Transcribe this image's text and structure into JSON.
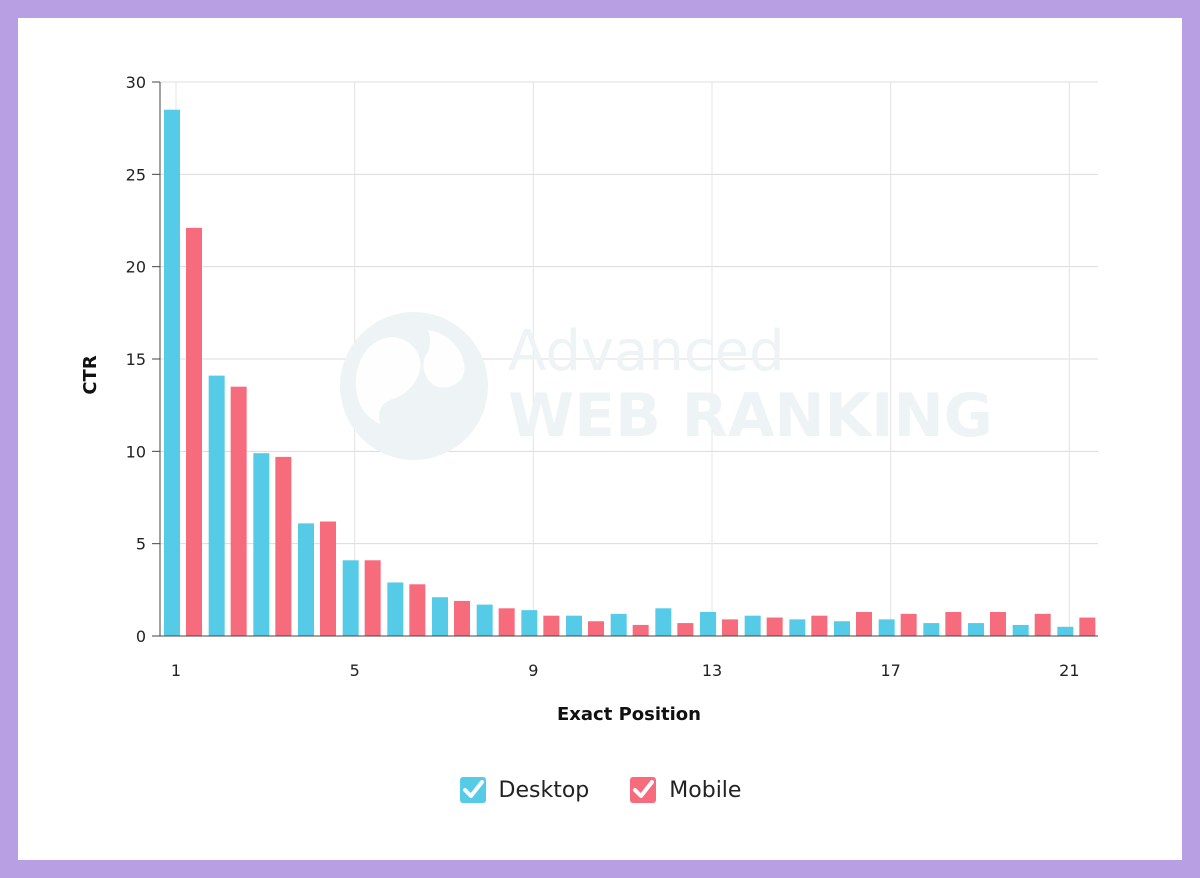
{
  "chart_data": {
    "type": "bar",
    "ylabel": "CTR",
    "xlabel": "Exact Position",
    "watermark": [
      "Advanced",
      "WEB RANKING"
    ],
    "ylim": [
      0,
      30
    ],
    "yticks": [
      0,
      5,
      10,
      15,
      20,
      25,
      30
    ],
    "categories": [
      1,
      2,
      3,
      4,
      5,
      6,
      7,
      8,
      9,
      10,
      11,
      12,
      13,
      14,
      15,
      16,
      17,
      18,
      19,
      20,
      21
    ],
    "xtick_labels": [
      "1",
      "5",
      "9",
      "13",
      "17",
      "21"
    ],
    "xtick_positions": [
      1,
      5,
      9,
      13,
      17,
      21
    ],
    "grid": true,
    "legend_position": "bottom-center",
    "series": [
      {
        "name": "Desktop",
        "color": "#56cbe8",
        "values": [
          28.5,
          14.1,
          9.9,
          6.1,
          4.1,
          2.9,
          2.1,
          1.7,
          1.4,
          1.1,
          1.2,
          1.5,
          1.3,
          1.1,
          0.9,
          0.8,
          0.9,
          0.7,
          0.7,
          0.6,
          0.5
        ]
      },
      {
        "name": "Mobile",
        "color": "#f76c7d",
        "values": [
          22.1,
          13.5,
          9.7,
          6.2,
          4.1,
          2.8,
          1.9,
          1.5,
          1.1,
          0.8,
          0.6,
          0.7,
          0.9,
          1.0,
          1.1,
          1.3,
          1.2,
          1.3,
          1.3,
          1.2,
          1.0
        ]
      }
    ]
  }
}
